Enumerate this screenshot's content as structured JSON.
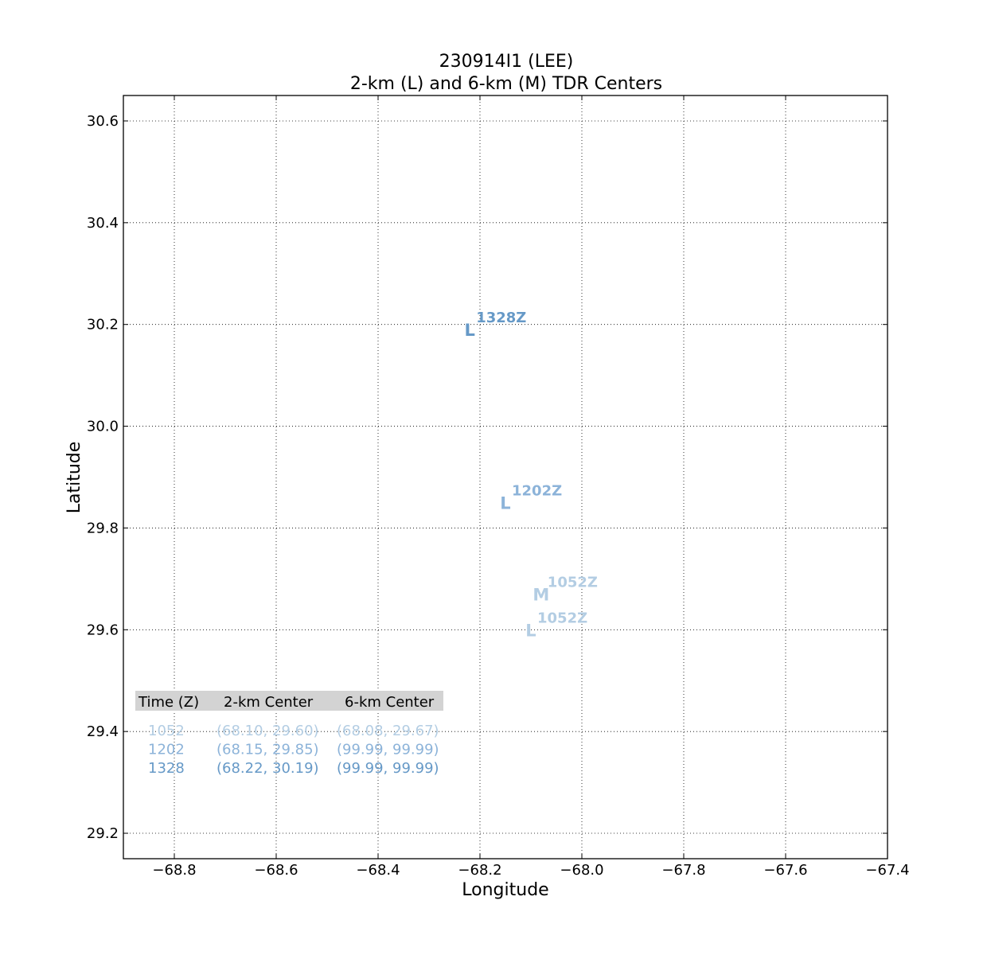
{
  "chart_data": {
    "type": "scatter",
    "title": "230914I1 (LEE)",
    "subtitle": "2-km (L) and 6-km (M) TDR Centers",
    "xlabel": "Longitude",
    "ylabel": "Latitude",
    "xlim": [
      -68.9,
      -67.4
    ],
    "ylim": [
      29.15,
      30.65
    ],
    "xticks": [
      -68.8,
      -68.6,
      -68.4,
      -68.2,
      -68.0,
      -67.8,
      -67.6,
      -67.4
    ],
    "xtick_labels": [
      "−68.8",
      "−68.6",
      "−68.4",
      "−68.2",
      "−68.0",
      "−67.8",
      "−67.6",
      "−67.4"
    ],
    "yticks": [
      29.2,
      29.4,
      29.6,
      29.8,
      30.0,
      30.2,
      30.4,
      30.6
    ],
    "ytick_labels": [
      "29.2",
      "29.4",
      "29.6",
      "29.8",
      "30.0",
      "30.2",
      "30.4",
      "30.6"
    ],
    "grid": true,
    "points": [
      {
        "marker": "L",
        "label": "1052Z",
        "x": -68.1,
        "y": 29.6,
        "color": "#b3cde3"
      },
      {
        "marker": "M",
        "label": "1052Z",
        "x": -68.08,
        "y": 29.67,
        "color": "#b3cde3"
      },
      {
        "marker": "L",
        "label": "1202Z",
        "x": -68.15,
        "y": 29.85,
        "color": "#8cb3d9"
      },
      {
        "marker": "L",
        "label": "1328Z",
        "x": -68.22,
        "y": 30.19,
        "color": "#6699c7"
      }
    ],
    "table": {
      "headers": [
        "Time (Z)",
        "2-km Center",
        "6-km Center"
      ],
      "rows": [
        {
          "time": "1052",
          "center_2km": "(68.10, 29.60)",
          "center_6km": "(68.08, 29.67)",
          "color": "#b3cde3"
        },
        {
          "time": "1202",
          "center_2km": "(68.15, 29.85)",
          "center_6km": "(99.99, 99.99)",
          "color": "#8cb3d9"
        },
        {
          "time": "1328",
          "center_2km": "(68.22, 30.19)",
          "center_6km": "(99.99, 99.99)",
          "color": "#6699c7"
        }
      ]
    }
  }
}
